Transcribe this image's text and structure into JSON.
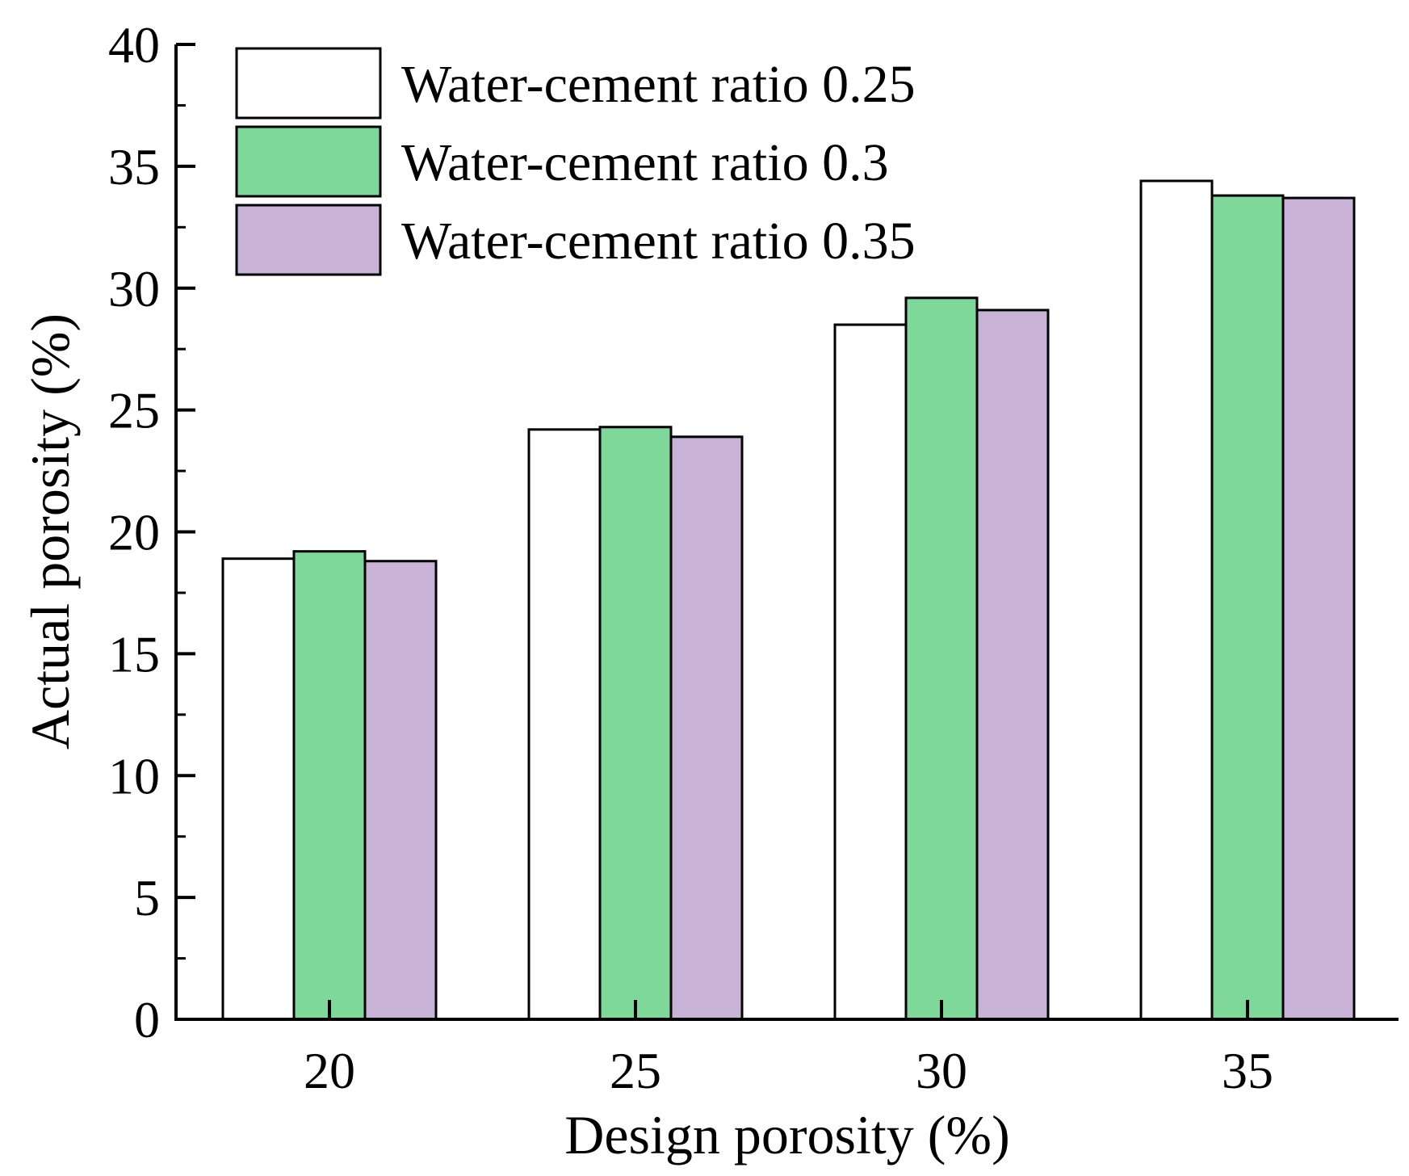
{
  "chart_data": {
    "type": "bar",
    "title": "",
    "xlabel": "Design porosity (%)",
    "ylabel": "Actual porosity (%)",
    "categories": [
      "20",
      "25",
      "30",
      "35"
    ],
    "ylim": [
      0,
      40
    ],
    "yticks": [
      "0",
      "5",
      "10",
      "15",
      "20",
      "25",
      "30",
      "35",
      "40"
    ],
    "grid": false,
    "legend_position": "top-left",
    "series": [
      {
        "name": "Water-cement ratio 0.25",
        "color": "#ffffff",
        "values": [
          18.9,
          24.2,
          28.5,
          34.4
        ]
      },
      {
        "name": "Water-cement ratio 0.3",
        "color": "#7dd89a",
        "values": [
          19.2,
          24.3,
          29.6,
          33.8
        ]
      },
      {
        "name": "Water-cement ratio 0.35",
        "color": "#c8b2d6",
        "values": [
          18.8,
          23.9,
          29.1,
          33.7
        ]
      }
    ]
  }
}
